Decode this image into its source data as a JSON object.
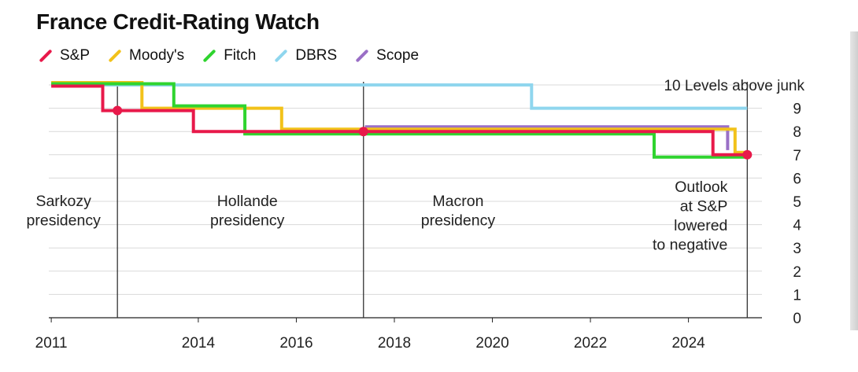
{
  "title": "France Credit-Rating Watch",
  "chart_data": {
    "type": "line",
    "title": "France Credit-Rating Watch",
    "xlabel": "",
    "ylabel": "",
    "xlim": [
      2010.95,
      2025.5
    ],
    "ylim": [
      0,
      10
    ],
    "x_ticks": [
      2011,
      2014,
      2016,
      2018,
      2020,
      2022,
      2024
    ],
    "y_ticks": [
      0,
      1,
      2,
      3,
      4,
      5,
      6,
      7,
      8,
      9
    ],
    "y_tick_labels": [
      "0",
      "1",
      "2",
      "3",
      "4",
      "5",
      "6",
      "7",
      "8",
      "9"
    ],
    "y_top_label": "10 Levels above junk",
    "grid": "horizontal",
    "legend_position": "top-left",
    "series": [
      {
        "name": "DBRS",
        "color": "#8fd6ee",
        "points": [
          [
            2011.0,
            10
          ],
          [
            2020.8,
            10
          ],
          [
            2020.8,
            9
          ],
          [
            2025.2,
            9
          ]
        ]
      },
      {
        "name": "Scope",
        "color": "#9a6fc6",
        "points": [
          [
            2017.4,
            8.2
          ],
          [
            2024.8,
            8.2
          ],
          [
            2024.8,
            7.2
          ]
        ]
      },
      {
        "name": "Moody's",
        "color": "#f2c21a",
        "points": [
          [
            2011.0,
            10.1
          ],
          [
            2012.85,
            10.1
          ],
          [
            2012.85,
            9
          ],
          [
            2015.7,
            9
          ],
          [
            2015.7,
            8.1
          ],
          [
            2024.95,
            8.1
          ],
          [
            2024.95,
            7.1
          ],
          [
            2025.2,
            7.1
          ]
        ]
      },
      {
        "name": "Fitch",
        "color": "#2fd42f",
        "points": [
          [
            2011.0,
            10.05
          ],
          [
            2013.5,
            10.05
          ],
          [
            2013.5,
            9.1
          ],
          [
            2014.95,
            9.1
          ],
          [
            2014.95,
            7.9
          ],
          [
            2023.3,
            7.9
          ],
          [
            2023.3,
            6.9
          ],
          [
            2025.2,
            6.9
          ]
        ]
      },
      {
        "name": "S&P",
        "color": "#e8194a",
        "points": [
          [
            2011.0,
            9.95
          ],
          [
            2012.05,
            9.95
          ],
          [
            2012.05,
            8.9
          ],
          [
            2013.9,
            8.9
          ],
          [
            2013.9,
            8.0
          ],
          [
            2024.5,
            8.0
          ],
          [
            2024.5,
            7.0
          ],
          [
            2025.2,
            7.0
          ]
        ]
      }
    ],
    "markers": [
      {
        "series": "S&P",
        "x": 2012.35,
        "y": 8.9
      },
      {
        "series": "S&P",
        "x": 2017.37,
        "y": 8.0
      },
      {
        "series": "S&P",
        "x": 2025.2,
        "y": 7.0
      }
    ],
    "vlines": [
      2012.35,
      2017.37,
      2025.2
    ],
    "annotations": [
      {
        "lines": [
          "Sarkozy",
          "presidency"
        ],
        "x": 2011.25,
        "y": 4.8,
        "anchor": "middle"
      },
      {
        "lines": [
          "Hollande",
          "presidency"
        ],
        "x": 2015.0,
        "y": 4.8,
        "anchor": "middle"
      },
      {
        "lines": [
          "Macron",
          "presidency"
        ],
        "x": 2019.3,
        "y": 4.8,
        "anchor": "middle"
      },
      {
        "lines": [
          "Outlook",
          "at S&P",
          "lowered",
          "to negative"
        ],
        "x": 2024.8,
        "y": 5.4,
        "anchor": "end"
      }
    ]
  }
}
